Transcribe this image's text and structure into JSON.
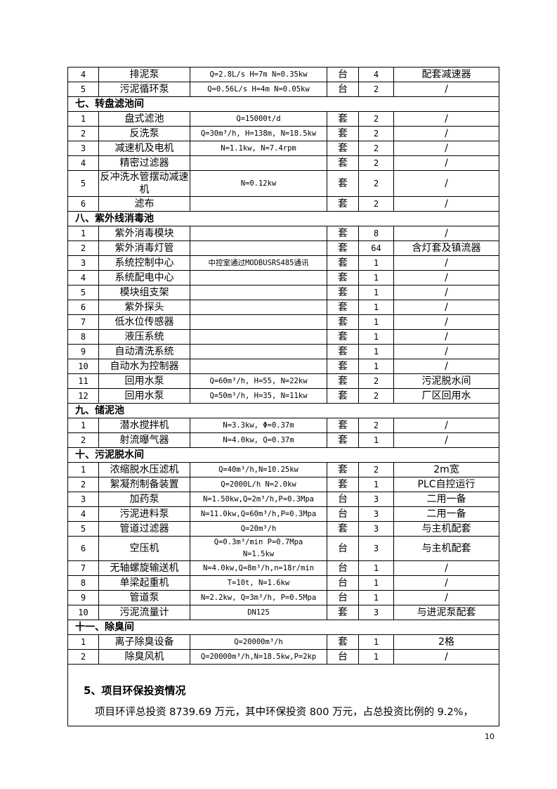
{
  "table": {
    "groups": [
      {
        "rows": [
          [
            "4",
            "排泥泵",
            "Q=2.8L/s H=7m N=0.35kw",
            "台",
            "4",
            "配套减速器"
          ],
          [
            "5",
            "污泥循环泵",
            "Q=0.56L/s H=4m N=0.05kw",
            "台",
            "2",
            "/"
          ]
        ]
      },
      {
        "heading": "七、转盘滤池间",
        "rows": [
          [
            "1",
            "盘式滤池",
            "Q=15000t/d",
            "套",
            "2",
            "/"
          ],
          [
            "2",
            "反洗泵",
            "Q=30m³/h, H=138m, N=18.5kw",
            "套",
            "2",
            "/"
          ],
          [
            "3",
            "减速机及电机",
            "N=1.1kw, N=7.4rpm",
            "套",
            "2",
            "/"
          ],
          [
            "4",
            "精密过滤器",
            "",
            "套",
            "2",
            "/"
          ],
          [
            "5",
            "反冲洗水管摆动减速机",
            "N=0.12kw",
            "套",
            "2",
            "/"
          ],
          [
            "6",
            "滤布",
            "",
            "套",
            "2",
            "/"
          ]
        ]
      },
      {
        "heading": "八、紫外线消毒池",
        "rows": [
          [
            "1",
            "紫外消毒模块",
            "",
            "套",
            "8",
            "/"
          ],
          [
            "2",
            "紫外消毒灯管",
            "",
            "套",
            "64",
            "含灯套及镇流器"
          ],
          [
            "3",
            "系统控制中心",
            "中控室通过MODBUSRS485通讯",
            "套",
            "1",
            "/"
          ],
          [
            "4",
            "系统配电中心",
            "",
            "套",
            "1",
            "/"
          ],
          [
            "5",
            "模块组支架",
            "",
            "套",
            "1",
            "/"
          ],
          [
            "6",
            "紫外探头",
            "",
            "套",
            "1",
            "/"
          ],
          [
            "7",
            "低水位传感器",
            "",
            "套",
            "1",
            "/"
          ],
          [
            "8",
            "液压系统",
            "",
            "套",
            "1",
            "/"
          ],
          [
            "9",
            "自动清洗系统",
            "",
            "套",
            "1",
            "/"
          ],
          [
            "10",
            "自动水为控制器",
            "",
            "套",
            "1",
            "/"
          ],
          [
            "11",
            "回用水泵",
            "Q=60m³/h, H=55, N=22kw",
            "套",
            "2",
            "污泥脱水间"
          ],
          [
            "12",
            "回用水泵",
            "Q=50m³/h, H=35, N=11kw",
            "套",
            "2",
            "厂区回用水"
          ]
        ]
      },
      {
        "heading": "九、储泥池",
        "rows": [
          [
            "1",
            "潜水搅拌机",
            "N=3.3kw, Φ=0.37m",
            "套",
            "2",
            "/"
          ],
          [
            "2",
            "射流曝气器",
            "N=4.0kw, Q=0.37m",
            "套",
            "1",
            "/"
          ]
        ]
      },
      {
        "heading": "十、污泥脱水间",
        "rows": [
          [
            "1",
            "浓缩脱水压滤机",
            "Q=40m³/h,N=10.25kw",
            "套",
            "2",
            "2m宽"
          ],
          [
            "2",
            "絮凝剂制备装置",
            "Q=2000L/h N=2.0kw",
            "套",
            "1",
            "PLC自控运行"
          ],
          [
            "3",
            "加药泵",
            "N=1.50kw,Q=2m³/h,P=0.3Mpa",
            "台",
            "3",
            "二用一备"
          ],
          [
            "4",
            "污泥进料泵",
            "N=11.0kw,Q=60m³/h,P=0.3Mpa",
            "台",
            "3",
            "二用一备"
          ],
          [
            "5",
            "管道过滤器",
            "Q=20m³/h",
            "套",
            "3",
            "与主机配套"
          ],
          [
            "6",
            "空压机",
            "Q=0.3m³/min P=0.7Mpa\nN=1.5kw",
            "台",
            "3",
            "与主机配套"
          ],
          [
            "7",
            "无轴螺旋输送机",
            "N=4.0kw,Q=8m³/h,n=18r/min",
            "台",
            "1",
            "/"
          ],
          [
            "8",
            "单梁起重机",
            "T=10t, N=1.6kw",
            "台",
            "1",
            "/"
          ],
          [
            "9",
            "管道泵",
            "N=2.2kw, Q=3m³/h, P=0.5Mpa",
            "台",
            "1",
            "/"
          ],
          [
            "10",
            "污泥流量计",
            "DN125",
            "套",
            "3",
            "与进泥泵配套"
          ]
        ]
      },
      {
        "heading": "十一、除臭间",
        "rows": [
          [
            "1",
            "离子除臭设备",
            "Q=20000m³/h",
            "套",
            "1",
            "2格"
          ],
          [
            "2",
            "除臭风机",
            "Q=20000m³/h,N=18.5kw,P=2kp",
            "台",
            "1",
            "/"
          ]
        ]
      }
    ]
  },
  "section_title": "5、项目环保投资情况",
  "paragraph": "项目环评总投资 8739.69 万元，其中环保投资 800 万元，占总投资比例的 9.2%，",
  "page_number": "10"
}
